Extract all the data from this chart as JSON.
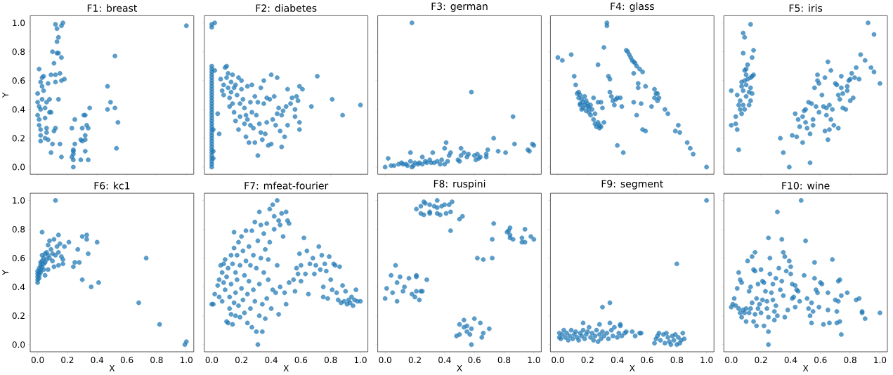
{
  "chart_data": [
    {
      "type": "scatter",
      "title": "F1: breast",
      "ylabel": "Y",
      "color": "#1f77b4",
      "tick_labels": "y",
      "xlim": [
        -0.05,
        1.05
      ],
      "ylim": [
        -0.05,
        1.05
      ],
      "xticks": [
        {
          "value": 0,
          "label": null
        },
        {
          "value": 0.2,
          "label": null
        },
        {
          "value": 0.4,
          "label": null
        },
        {
          "value": 0.6,
          "label": null
        },
        {
          "value": 0.8,
          "label": null
        },
        {
          "value": 1,
          "label": null
        }
      ],
      "yticks": [
        {
          "value": 0,
          "label": "0.0"
        },
        {
          "value": 0.2,
          "label": "0.2"
        },
        {
          "value": 0.4,
          "label": "0.4"
        },
        {
          "value": 0.6,
          "label": "0.6"
        },
        {
          "value": 0.8,
          "label": "0.8"
        },
        {
          "value": 1,
          "label": "1.0"
        }
      ],
      "x": [
        0.0,
        0.0,
        0.01,
        0.0,
        0.01,
        0.01,
        0.01,
        0.02,
        0.02,
        0.02,
        0.02,
        0.02,
        0.03,
        0.03,
        0.03,
        0.04,
        0.04,
        0.05,
        0.05,
        0.05,
        0.06,
        0.06,
        0.06,
        0.07,
        0.07,
        0.08,
        0.08,
        0.09,
        0.09,
        0.09,
        0.1,
        0.1,
        0.11,
        0.12,
        0.12,
        0.11,
        0.12,
        0.12,
        0.13,
        0.13,
        0.13,
        0.14,
        0.14,
        0.14,
        0.15,
        0.15,
        0.16,
        0.16,
        0.16,
        0.17,
        0.16,
        0.18,
        0.23,
        0.23,
        0.24,
        0.24,
        0.24,
        0.24,
        0.24,
        0.25,
        0.25,
        0.29,
        0.3,
        0.29,
        0.3,
        0.31,
        0.32,
        0.32,
        0.32,
        0.32,
        0.33,
        0.34,
        0.34,
        0.35,
        0.47,
        0.47,
        0.49,
        0.52,
        0.52,
        0.53,
        0.54,
        1.0
      ],
      "values": [
        0.36,
        0.51,
        0.68,
        0.45,
        0.42,
        0.33,
        0.29,
        0.22,
        0.18,
        0.26,
        0.4,
        0.59,
        0.62,
        0.56,
        0.47,
        0.63,
        0.53,
        0.41,
        0.34,
        0.2,
        0.27,
        0.24,
        0.45,
        0.58,
        0.19,
        0.38,
        0.47,
        0.64,
        0.1,
        0.38,
        0.16,
        0.8,
        0.72,
        0.59,
        0.64,
        0.25,
        0.27,
        0.99,
        0.96,
        0.87,
        0.79,
        0.9,
        0.47,
        0.79,
        0.16,
        0.65,
        0.98,
        0.76,
        0.6,
        1.0,
        0.07,
        0.61,
        0.27,
        0.07,
        0.12,
        0.09,
        0.05,
        0.0,
        0.11,
        0.33,
        0.16,
        0.19,
        0.18,
        0.05,
        0.27,
        0.36,
        0.36,
        0.11,
        0.22,
        0.19,
        0.29,
        0.27,
        0.05,
        0.41,
        0.4,
        0.56,
        0.45,
        0.77,
        0.41,
        0.13,
        0.31,
        0.98
      ]
    },
    {
      "type": "scatter",
      "title": "F2: diabetes",
      "color": "#1f77b4",
      "tick_labels": false,
      "xlim": [
        -0.05,
        1.05
      ],
      "ylim": [
        -0.05,
        1.05
      ],
      "xticks": [
        {
          "value": 0,
          "label": null
        },
        {
          "value": 0.2,
          "label": null
        },
        {
          "value": 0.4,
          "label": null
        },
        {
          "value": 0.6,
          "label": null
        },
        {
          "value": 0.8,
          "label": null
        },
        {
          "value": 1,
          "label": null
        }
      ],
      "yticks": [
        {
          "value": 0,
          "label": null
        },
        {
          "value": 0.2,
          "label": null
        },
        {
          "value": 0.4,
          "label": null
        },
        {
          "value": 0.6,
          "label": null
        },
        {
          "value": 0.8,
          "label": null
        },
        {
          "value": 1,
          "label": null
        }
      ],
      "x": [
        0,
        0,
        0,
        0,
        0,
        0,
        0,
        0,
        0,
        0,
        0,
        0,
        0,
        0,
        0,
        0,
        0,
        0,
        0,
        0,
        0,
        0,
        0,
        0,
        0,
        0,
        0,
        0,
        0,
        0,
        0,
        0,
        0,
        0,
        0,
        0,
        0,
        0,
        0.02,
        0.01,
        0.01,
        0.01,
        0.02,
        0.04,
        0.05,
        0.06,
        0.07,
        0.08,
        0.08,
        0.09,
        0.1,
        0.1,
        0.11,
        0.11,
        0.12,
        0.12,
        0.13,
        0.13,
        0.14,
        0.14,
        0.15,
        0.15,
        0.16,
        0.16,
        0.17,
        0.18,
        0.18,
        0.19,
        0.19,
        0.2,
        0.2,
        0.21,
        0.22,
        0.22,
        0.23,
        0.23,
        0.24,
        0.24,
        0.25,
        0.26,
        0.26,
        0.27,
        0.27,
        0.28,
        0.29,
        0.29,
        0.3,
        0.31,
        0.31,
        0.32,
        0.33,
        0.33,
        0.34,
        0.35,
        0.35,
        0.36,
        0.37,
        0.37,
        0.38,
        0.39,
        0.4,
        0.4,
        0.41,
        0.42,
        0.43,
        0.44,
        0.44,
        0.45,
        0.46,
        0.47,
        0.47,
        0.48,
        0.49,
        0.5,
        0.51,
        0.51,
        0.53,
        0.54,
        0.56,
        0.59,
        0.59,
        0.61,
        0.67,
        0.71,
        0.57,
        0.58,
        0.59,
        0.56,
        0.81,
        0.88,
        1.0
      ],
      "values": [
        0.0,
        0.02,
        0.04,
        0.06,
        0.08,
        0.1,
        0.12,
        0.14,
        0.16,
        0.18,
        0.2,
        0.22,
        0.24,
        0.26,
        0.28,
        0.3,
        0.32,
        0.34,
        0.36,
        0.38,
        0.4,
        0.42,
        0.44,
        0.46,
        0.48,
        0.5,
        0.52,
        0.54,
        0.56,
        0.58,
        0.6,
        0.62,
        0.64,
        0.66,
        0.68,
        0.7,
        0.97,
        0.99,
        1.0,
        0.11,
        0.06,
        0.26,
        0.67,
        0.37,
        0.23,
        0.61,
        0.53,
        0.57,
        0.5,
        0.69,
        0.7,
        0.62,
        0.65,
        0.55,
        0.48,
        0.42,
        0.59,
        0.52,
        0.64,
        0.44,
        0.55,
        0.38,
        0.57,
        0.32,
        0.5,
        0.62,
        0.26,
        0.44,
        0.35,
        0.54,
        0.6,
        0.47,
        0.3,
        0.41,
        0.21,
        0.36,
        0.56,
        0.33,
        0.17,
        0.45,
        0.29,
        0.57,
        0.38,
        0.27,
        0.49,
        0.17,
        0.36,
        0.08,
        0.45,
        0.3,
        0.55,
        0.24,
        0.19,
        0.6,
        0.44,
        0.23,
        0.48,
        0.31,
        0.15,
        0.47,
        0.64,
        0.16,
        0.33,
        0.49,
        0.29,
        0.62,
        0.37,
        0.41,
        0.25,
        0.14,
        0.36,
        0.39,
        0.21,
        0.42,
        0.54,
        0.29,
        0.44,
        0.48,
        0.4,
        0.26,
        0.56,
        0.54,
        0.42,
        0.63,
        0.49,
        0.46,
        0.31,
        0.35,
        0.47,
        0.36,
        0.43
      ]
    },
    {
      "type": "scatter",
      "title": "F3: german",
      "color": "#1f77b4",
      "tick_labels": false,
      "xlim": [
        -0.05,
        1.05
      ],
      "ylim": [
        -0.05,
        1.05
      ],
      "xticks": [
        {
          "value": 0,
          "label": null
        },
        {
          "value": 0.2,
          "label": null
        },
        {
          "value": 0.4,
          "label": null
        },
        {
          "value": 0.6,
          "label": null
        },
        {
          "value": 0.8,
          "label": null
        },
        {
          "value": 1,
          "label": null
        }
      ],
      "yticks": [
        {
          "value": 0,
          "label": null
        },
        {
          "value": 0.2,
          "label": null
        },
        {
          "value": 0.4,
          "label": null
        },
        {
          "value": 0.6,
          "label": null
        },
        {
          "value": 0.8,
          "label": null
        },
        {
          "value": 1,
          "label": null
        }
      ],
      "x": [
        0.0,
        0.02,
        0.04,
        0.06,
        0.09,
        0.11,
        0.12,
        0.14,
        0.15,
        0.17,
        0.17,
        0.18,
        0.18,
        0.19,
        0.2,
        0.22,
        0.23,
        0.25,
        0.25,
        0.27,
        0.28,
        0.3,
        0.31,
        0.32,
        0.33,
        0.35,
        0.37,
        0.38,
        0.4,
        0.4,
        0.41,
        0.42,
        0.43,
        0.44,
        0.49,
        0.5,
        0.51,
        0.51,
        0.53,
        0.55,
        0.56,
        0.58,
        0.6,
        0.61,
        0.62,
        0.63,
        0.64,
        0.68,
        0.68,
        0.69,
        0.73,
        0.76,
        0.81,
        0.86,
        0.87,
        0.96,
        0.97,
        0.99,
        1.0
      ],
      "values": [
        0.0,
        0.06,
        0.01,
        0.01,
        0.02,
        0.03,
        0.02,
        0.02,
        0.01,
        0.1,
        0.04,
        1.0,
        0.0,
        0.01,
        0.03,
        0.02,
        0.03,
        0.07,
        0.02,
        0.04,
        0.03,
        0.05,
        0.03,
        0.1,
        0.03,
        0.04,
        0.02,
        0.05,
        0.13,
        0.02,
        0.17,
        0.04,
        0.08,
        0.1,
        0.05,
        0.04,
        0.08,
        0.13,
        0.1,
        0.07,
        0.09,
        0.52,
        0.08,
        0.05,
        0.09,
        0.06,
        0.07,
        0.07,
        0.09,
        0.12,
        0.2,
        0.11,
        0.1,
        0.35,
        0.16,
        0.12,
        0.11,
        0.16,
        0.15
      ]
    },
    {
      "type": "scatter",
      "title": "F4: glass",
      "color": "#1f77b4",
      "tick_labels": false,
      "xlim": [
        -0.05,
        1.05
      ],
      "ylim": [
        -0.05,
        1.05
      ],
      "xticks": [
        {
          "value": 0,
          "label": null
        },
        {
          "value": 0.2,
          "label": null
        },
        {
          "value": 0.4,
          "label": null
        },
        {
          "value": 0.6,
          "label": null
        },
        {
          "value": 0.8,
          "label": null
        },
        {
          "value": 1,
          "label": null
        }
      ],
      "yticks": [
        {
          "value": 0,
          "label": null
        },
        {
          "value": 0.2,
          "label": null
        },
        {
          "value": 0.4,
          "label": null
        },
        {
          "value": 0.6,
          "label": null
        },
        {
          "value": 0.8,
          "label": null
        },
        {
          "value": 1,
          "label": null
        }
      ],
      "x": [
        0.0,
        0.03,
        0.09,
        0.11,
        0.12,
        0.13,
        0.14,
        0.14,
        0.15,
        0.15,
        0.15,
        0.16,
        0.16,
        0.17,
        0.17,
        0.18,
        0.18,
        0.19,
        0.19,
        0.2,
        0.2,
        0.21,
        0.21,
        0.22,
        0.22,
        0.23,
        0.24,
        0.25,
        0.25,
        0.26,
        0.27,
        0.28,
        0.28,
        0.24,
        0.27,
        0.29,
        0.3,
        0.29,
        0.31,
        0.27,
        0.31,
        0.33,
        0.33,
        0.34,
        0.35,
        0.35,
        0.36,
        0.37,
        0.38,
        0.39,
        0.4,
        0.4,
        0.42,
        0.43,
        0.44,
        0.46,
        0.47,
        0.48,
        0.49,
        0.5,
        0.51,
        0.51,
        0.52,
        0.53,
        0.53,
        0.51,
        0.54,
        0.54,
        0.55,
        0.56,
        0.57,
        0.59,
        0.57,
        0.59,
        0.63,
        0.65,
        0.65,
        0.66,
        0.67,
        0.68,
        0.67,
        0.72,
        0.74,
        0.79,
        0.81,
        0.82,
        0.87,
        0.89,
        0.91,
        1.0
      ],
      "values": [
        0.76,
        0.74,
        0.78,
        0.63,
        0.57,
        0.51,
        0.52,
        0.48,
        0.5,
        0.44,
        0.43,
        0.47,
        0.4,
        0.45,
        0.41,
        0.49,
        0.43,
        0.46,
        0.39,
        0.42,
        0.44,
        0.38,
        0.41,
        0.43,
        0.36,
        0.4,
        0.33,
        0.3,
        0.37,
        0.28,
        0.31,
        0.29,
        0.27,
        0.48,
        0.45,
        0.45,
        0.41,
        0.28,
        0.31,
        0.71,
        0.83,
        1.0,
        0.98,
        0.63,
        0.61,
        0.52,
        0.49,
        0.46,
        0.43,
        0.47,
        0.48,
        0.15,
        0.48,
        0.42,
        0.1,
        0.81,
        0.8,
        0.78,
        0.76,
        0.74,
        0.73,
        0.65,
        0.72,
        0.7,
        0.36,
        0.45,
        0.58,
        0.55,
        0.68,
        0.44,
        0.66,
        0.56,
        0.26,
        0.25,
        0.42,
        0.48,
        0.54,
        0.51,
        0.51,
        0.48,
        0.46,
        0.4,
        0.37,
        0.25,
        0.29,
        0.24,
        0.17,
        0.13,
        0.09,
        0.0
      ]
    },
    {
      "type": "scatter",
      "title": "F5: iris",
      "color": "#1f77b4",
      "tick_labels": false,
      "xlim": [
        -0.05,
        1.05
      ],
      "ylim": [
        -0.05,
        1.05
      ],
      "xticks": [
        {
          "value": 0,
          "label": null
        },
        {
          "value": 0.2,
          "label": null
        },
        {
          "value": 0.4,
          "label": null
        },
        {
          "value": 0.6,
          "label": null
        },
        {
          "value": 0.8,
          "label": null
        },
        {
          "value": 1,
          "label": null
        }
      ],
      "yticks": [
        {
          "value": 0,
          "label": null
        },
        {
          "value": 0.2,
          "label": null
        },
        {
          "value": 0.4,
          "label": null
        },
        {
          "value": 0.6,
          "label": null
        },
        {
          "value": 0.8,
          "label": null
        },
        {
          "value": 1,
          "label": null
        }
      ],
      "x": [
        0.0,
        0.0,
        0.03,
        0.03,
        0.04,
        0.04,
        0.05,
        0.05,
        0.06,
        0.06,
        0.07,
        0.07,
        0.07,
        0.08,
        0.08,
        0.09,
        0.09,
        0.08,
        0.08,
        0.09,
        0.09,
        0.1,
        0.1,
        0.1,
        0.1,
        0.11,
        0.11,
        0.12,
        0.12,
        0.13,
        0.13,
        0.13,
        0.13,
        0.14,
        0.14,
        0.14,
        0.15,
        0.15,
        0.33,
        0.35,
        0.39,
        0.41,
        0.43,
        0.44,
        0.45,
        0.46,
        0.48,
        0.48,
        0.49,
        0.5,
        0.5,
        0.51,
        0.52,
        0.53,
        0.53,
        0.54,
        0.55,
        0.55,
        0.56,
        0.57,
        0.58,
        0.58,
        0.59,
        0.59,
        0.61,
        0.62,
        0.63,
        0.63,
        0.64,
        0.64,
        0.65,
        0.65,
        0.66,
        0.66,
        0.67,
        0.67,
        0.68,
        0.69,
        0.7,
        0.71,
        0.72,
        0.72,
        0.73,
        0.74,
        0.74,
        0.75,
        0.75,
        0.77,
        0.78,
        0.78,
        0.79,
        0.8,
        0.8,
        0.81,
        0.82,
        0.83,
        0.84,
        0.86,
        0.87,
        0.9,
        0.92,
        0.94,
        0.96,
        0.96,
        1.0
      ],
      "values": [
        0.53,
        0.29,
        0.35,
        0.3,
        0.26,
        0.5,
        0.12,
        0.43,
        0.4,
        0.46,
        0.37,
        0.56,
        0.59,
        0.43,
        0.53,
        0.6,
        0.4,
        0.79,
        0.93,
        0.9,
        0.67,
        0.68,
        0.64,
        0.57,
        0.49,
        0.71,
        0.61,
        0.43,
        0.52,
        0.62,
        0.55,
        0.99,
        0.46,
        0.51,
        0.76,
        0.63,
        0.81,
        0.64,
        0.2,
        0.1,
        0.0,
        0.22,
        0.37,
        0.21,
        0.33,
        0.28,
        0.35,
        0.17,
        0.39,
        0.31,
        0.4,
        0.27,
        0.45,
        0.23,
        0.03,
        0.44,
        0.33,
        0.29,
        0.55,
        0.42,
        0.64,
        0.6,
        0.38,
        0.58,
        0.5,
        0.42,
        0.62,
        0.25,
        0.41,
        0.36,
        0.73,
        0.19,
        0.43,
        0.26,
        0.33,
        0.67,
        0.4,
        0.29,
        0.58,
        0.57,
        0.27,
        0.5,
        0.47,
        0.55,
        0.63,
        0.51,
        0.41,
        0.4,
        0.53,
        0.56,
        0.6,
        0.61,
        0.46,
        0.65,
        0.48,
        0.62,
        0.69,
        0.61,
        0.78,
        0.74,
        1.0,
        0.69,
        0.92,
        0.66,
        0.58
      ]
    },
    {
      "type": "scatter",
      "title": "F6: kc1",
      "xlabel": "X",
      "ylabel": "Y",
      "color": "#1f77b4",
      "xlim": [
        -0.05,
        1.05
      ],
      "ylim": [
        -0.05,
        1.05
      ],
      "xticks": [
        {
          "value": 0,
          "label": "0.0"
        },
        {
          "value": 0.2,
          "label": "0.2"
        },
        {
          "value": 0.4,
          "label": "0.4"
        },
        {
          "value": 0.6,
          "label": "0.6"
        },
        {
          "value": 0.8,
          "label": "0.8"
        },
        {
          "value": 1,
          "label": "1.0"
        }
      ],
      "yticks": [
        {
          "value": 0,
          "label": "0.0"
        },
        {
          "value": 0.2,
          "label": "0.2"
        },
        {
          "value": 0.4,
          "label": "0.4"
        },
        {
          "value": 0.6,
          "label": "0.6"
        },
        {
          "value": 0.8,
          "label": "0.8"
        },
        {
          "value": 1,
          "label": "1.0"
        }
      ],
      "x": [
        0.0,
        0.0,
        0.0,
        0.0,
        0.0,
        0.01,
        0.01,
        0.01,
        0.01,
        0.02,
        0.02,
        0.02,
        0.02,
        0.03,
        0.03,
        0.03,
        0.04,
        0.04,
        0.04,
        0.05,
        0.05,
        0.05,
        0.06,
        0.06,
        0.07,
        0.07,
        0.07,
        0.08,
        0.08,
        0.09,
        0.1,
        0.1,
        0.11,
        0.11,
        0.12,
        0.12,
        0.13,
        0.14,
        0.14,
        0.14,
        0.15,
        0.16,
        0.17,
        0.17,
        0.18,
        0.03,
        0.21,
        0.24,
        0.25,
        0.27,
        0.28,
        0.3,
        0.3,
        0.33,
        0.33,
        0.34,
        0.36,
        0.4,
        0.41,
        0.68,
        0.73,
        0.82,
        0.99,
        1.0
      ],
      "values": [
        0.43,
        0.45,
        0.47,
        0.49,
        0.51,
        0.46,
        0.5,
        0.53,
        0.48,
        0.52,
        0.55,
        0.5,
        0.57,
        0.54,
        0.58,
        0.62,
        0.56,
        0.6,
        0.52,
        0.57,
        0.63,
        0.48,
        0.59,
        0.64,
        0.62,
        0.69,
        0.52,
        0.72,
        0.6,
        0.66,
        0.58,
        0.63,
        0.54,
        0.73,
        1.0,
        0.62,
        0.68,
        0.76,
        0.55,
        0.64,
        0.7,
        0.61,
        0.59,
        0.56,
        0.68,
        0.78,
        0.71,
        0.54,
        0.57,
        0.66,
        0.57,
        0.75,
        0.45,
        0.76,
        0.73,
        0.63,
        0.4,
        0.71,
        0.43,
        0.29,
        0.6,
        0.14,
        0.0,
        0.02
      ]
    },
    {
      "type": "scatter",
      "title": "F7: mfeat-fourier",
      "xlabel": "X",
      "color": "#1f77b4",
      "tick_labels": "x",
      "xlim": [
        -0.05,
        1.05
      ],
      "ylim": [
        -0.05,
        1.05
      ],
      "xticks": [
        {
          "value": 0,
          "label": "0.0"
        },
        {
          "value": 0.2,
          "label": "0.2"
        },
        {
          "value": 0.4,
          "label": "0.4"
        },
        {
          "value": 0.6,
          "label": "0.6"
        },
        {
          "value": 0.8,
          "label": "0.8"
        },
        {
          "value": 1,
          "label": "1.0"
        }
      ],
      "yticks": [
        {
          "value": 0,
          "label": null
        },
        {
          "value": 0.2,
          "label": null
        },
        {
          "value": 0.4,
          "label": null
        },
        {
          "value": 0.6,
          "label": null
        },
        {
          "value": 0.8,
          "label": null
        },
        {
          "value": 1,
          "label": null
        }
      ],
      "x": [
        0.0,
        0.01,
        0.02,
        0.04,
        0.05,
        0.05,
        0.06,
        0.07,
        0.07,
        0.08,
        0.08,
        0.09,
        0.09,
        0.1,
        0.1,
        0.11,
        0.11,
        0.12,
        0.12,
        0.13,
        0.13,
        0.13,
        0.14,
        0.14,
        0.15,
        0.15,
        0.15,
        0.16,
        0.16,
        0.16,
        0.17,
        0.17,
        0.18,
        0.18,
        0.19,
        0.19,
        0.2,
        0.2,
        0.21,
        0.21,
        0.22,
        0.22,
        0.23,
        0.23,
        0.24,
        0.24,
        0.25,
        0.25,
        0.26,
        0.26,
        0.27,
        0.27,
        0.28,
        0.28,
        0.29,
        0.29,
        0.3,
        0.3,
        0.31,
        0.31,
        0.32,
        0.32,
        0.32,
        0.33,
        0.33,
        0.34,
        0.34,
        0.35,
        0.35,
        0.36,
        0.36,
        0.37,
        0.37,
        0.38,
        0.38,
        0.39,
        0.39,
        0.4,
        0.41,
        0.41,
        0.42,
        0.42,
        0.43,
        0.44,
        0.44,
        0.45,
        0.45,
        0.46,
        0.46,
        0.47,
        0.48,
        0.49,
        0.5,
        0.5,
        0.51,
        0.52,
        0.52,
        0.55,
        0.56,
        0.57,
        0.58,
        0.59,
        0.6,
        0.6,
        0.62,
        0.63,
        0.64,
        0.65,
        0.66,
        0.68,
        0.69,
        0.7,
        0.72,
        0.73,
        0.74,
        0.75,
        0.75,
        0.76,
        0.77,
        0.78,
        0.79,
        0.8,
        0.81,
        0.82,
        0.83,
        0.84,
        0.85,
        0.86,
        0.87,
        0.88,
        0.89,
        0.9,
        0.91,
        0.92,
        0.93,
        0.94,
        0.95,
        0.96,
        0.97,
        0.98,
        1.0
      ],
      "values": [
        0.28,
        0.28,
        0.35,
        0.41,
        0.45,
        0.33,
        0.55,
        0.3,
        0.5,
        0.56,
        0.43,
        0.59,
        0.38,
        0.47,
        0.16,
        0.15,
        0.53,
        0.33,
        0.25,
        0.42,
        0.21,
        0.62,
        0.14,
        0.56,
        0.78,
        0.67,
        0.29,
        0.5,
        0.36,
        0.2,
        0.62,
        0.45,
        0.71,
        0.27,
        0.55,
        0.19,
        0.75,
        0.39,
        0.65,
        0.31,
        0.48,
        0.22,
        0.79,
        0.58,
        0.35,
        0.15,
        0.68,
        0.44,
        0.25,
        0.55,
        0.79,
        0.12,
        0.62,
        0.38,
        0.85,
        0.3,
        0.09,
        0.53,
        0.72,
        0.0,
        0.92,
        0.42,
        0.2,
        0.83,
        0.6,
        0.09,
        0.28,
        0.77,
        0.5,
        0.66,
        0.18,
        0.84,
        0.32,
        0.59,
        0.45,
        0.94,
        0.71,
        0.25,
        0.97,
        0.38,
        0.89,
        0.8,
        0.36,
        1.0,
        0.55,
        0.86,
        0.21,
        0.83,
        0.4,
        0.91,
        0.75,
        0.36,
        0.92,
        0.28,
        0.86,
        0.84,
        0.43,
        0.45,
        0.37,
        0.53,
        0.49,
        0.63,
        0.44,
        0.55,
        0.74,
        0.49,
        0.65,
        0.35,
        0.56,
        0.6,
        0.49,
        0.55,
        0.68,
        0.52,
        0.62,
        0.4,
        0.33,
        0.56,
        0.51,
        0.32,
        0.61,
        0.45,
        0.38,
        0.56,
        0.55,
        0.36,
        0.31,
        0.54,
        0.29,
        0.41,
        0.3,
        0.37,
        0.28,
        0.31,
        0.29,
        0.33,
        0.27,
        0.31,
        0.38,
        0.3,
        0.3
      ]
    },
    {
      "type": "scatter",
      "title": "F8: ruspini",
      "xlabel": "X",
      "color": "#1f77b4",
      "tick_labels": "x",
      "xlim": [
        -0.05,
        1.05
      ],
      "ylim": [
        -0.05,
        1.05
      ],
      "xticks": [
        {
          "value": 0,
          "label": "0.0"
        },
        {
          "value": 0.2,
          "label": "0.2"
        },
        {
          "value": 0.4,
          "label": "0.4"
        },
        {
          "value": 0.6,
          "label": "0.6"
        },
        {
          "value": 0.8,
          "label": "0.8"
        },
        {
          "value": 1,
          "label": "1.0"
        }
      ],
      "yticks": [
        {
          "value": 0,
          "label": null
        },
        {
          "value": 0.2,
          "label": null
        },
        {
          "value": 0.4,
          "label": null
        },
        {
          "value": 0.6,
          "label": null
        },
        {
          "value": 0.8,
          "label": null
        },
        {
          "value": 1,
          "label": null
        }
      ],
      "x": [
        0.0,
        0.01,
        0.04,
        0.05,
        0.07,
        0.08,
        0.08,
        0.1,
        0.12,
        0.13,
        0.16,
        0.18,
        0.2,
        0.21,
        0.21,
        0.21,
        0.23,
        0.24,
        0.25,
        0.28,
        0.21,
        0.24,
        0.24,
        0.26,
        0.26,
        0.27,
        0.3,
        0.3,
        0.3,
        0.33,
        0.35,
        0.35,
        0.35,
        0.37,
        0.38,
        0.4,
        0.41,
        0.43,
        0.44,
        0.45,
        0.44,
        0.5,
        0.52,
        0.62,
        0.66,
        0.72,
        0.72,
        0.73,
        0.82,
        0.83,
        0.84,
        0.84,
        0.84,
        0.86,
        0.92,
        0.92,
        0.94,
        0.94,
        0.98,
        1.0,
        0.48,
        0.5,
        0.5,
        0.53,
        0.53,
        0.55,
        0.55,
        0.57,
        0.58,
        0.58,
        0.6,
        0.64,
        0.65,
        0.66,
        0.7
      ],
      "values": [
        0.32,
        0.39,
        0.48,
        0.36,
        0.55,
        0.43,
        0.3,
        0.47,
        0.37,
        0.4,
        0.46,
        0.35,
        0.33,
        0.47,
        0.48,
        0.37,
        0.31,
        0.37,
        0.37,
        0.45,
        0.94,
        0.96,
        0.91,
        0.99,
        0.9,
        0.98,
        0.97,
        0.92,
        0.91,
        0.96,
        1.0,
        0.95,
        0.91,
        0.9,
        0.96,
        0.97,
        0.91,
        0.97,
        0.92,
        0.99,
        0.79,
        0.87,
        0.89,
        0.6,
        0.59,
        0.6,
        0.73,
        0.84,
        0.78,
        0.79,
        0.81,
        0.76,
        0.74,
        0.73,
        0.74,
        0.71,
        0.71,
        0.8,
        0.75,
        0.73,
        0.06,
        0.14,
        0.07,
        0.12,
        0.17,
        0.13,
        0.09,
        0.07,
        0.11,
        0.0,
        0.18,
        0.15,
        0.05,
        0.08,
        0.11
      ]
    },
    {
      "type": "scatter",
      "title": "F9: segment",
      "xlabel": "X",
      "color": "#1f77b4",
      "tick_labels": "x",
      "xlim": [
        -0.05,
        1.05
      ],
      "ylim": [
        -0.05,
        1.05
      ],
      "xticks": [
        {
          "value": 0,
          "label": "0.0"
        },
        {
          "value": 0.2,
          "label": "0.2"
        },
        {
          "value": 0.4,
          "label": "0.4"
        },
        {
          "value": 0.6,
          "label": "0.6"
        },
        {
          "value": 0.8,
          "label": "0.8"
        },
        {
          "value": 1,
          "label": "1.0"
        }
      ],
      "yticks": [
        {
          "value": 0,
          "label": null
        },
        {
          "value": 0.2,
          "label": null
        },
        {
          "value": 0.4,
          "label": null
        },
        {
          "value": 0.6,
          "label": null
        },
        {
          "value": 0.8,
          "label": null
        },
        {
          "value": 1,
          "label": null
        }
      ],
      "x": [
        0.01,
        0.01,
        0.02,
        0.03,
        0.04,
        0.05,
        0.06,
        0.07,
        0.08,
        0.09,
        0.1,
        0.11,
        0.12,
        0.13,
        0.14,
        0.15,
        0.16,
        0.17,
        0.17,
        0.18,
        0.19,
        0.2,
        0.21,
        0.22,
        0.23,
        0.24,
        0.25,
        0.26,
        0.27,
        0.28,
        0.28,
        0.29,
        0.3,
        0.3,
        0.31,
        0.33,
        0.34,
        0.35,
        0.35,
        0.36,
        0.37,
        0.38,
        0.4,
        0.41,
        0.42,
        0.42,
        0.43,
        0.45,
        0.46,
        0.5,
        0.52,
        0.55,
        0.56,
        0.65,
        0.66,
        0.67,
        0.68,
        0.69,
        0.71,
        0.72,
        0.73,
        0.74,
        0.75,
        0.76,
        0.77,
        0.78,
        0.79,
        0.8,
        0.8,
        0.81,
        0.82,
        0.83,
        0.84,
        0.85,
        1.0
      ],
      "values": [
        0.05,
        0.08,
        0.04,
        0.07,
        0.1,
        0.05,
        0.08,
        0.03,
        0.06,
        0.1,
        0.04,
        0.07,
        0.09,
        0.05,
        0.03,
        0.08,
        0.06,
        0.15,
        0.1,
        0.04,
        0.07,
        0.09,
        0.12,
        0.05,
        0.08,
        0.03,
        0.06,
        0.1,
        0.02,
        0.14,
        0.07,
        0.04,
        0.26,
        0.09,
        0.06,
        0.08,
        0.04,
        0.15,
        0.29,
        0.1,
        0.06,
        0.12,
        0.05,
        0.08,
        0.14,
        0.13,
        0.06,
        0.08,
        0.09,
        0.09,
        0.06,
        0.08,
        0.08,
        0.01,
        0.04,
        0.06,
        0.08,
        0.03,
        0.07,
        0.01,
        0.08,
        0.05,
        0.02,
        0.0,
        0.06,
        0.03,
        0.07,
        0.0,
        0.56,
        0.05,
        0.01,
        0.03,
        0.08,
        0.04,
        1.0
      ]
    },
    {
      "type": "scatter",
      "title": "F10: wine",
      "xlabel": "X",
      "color": "#1f77b4",
      "tick_labels": "x",
      "xlim": [
        -0.05,
        1.05
      ],
      "ylim": [
        -0.05,
        1.05
      ],
      "xticks": [
        {
          "value": 0,
          "label": "0.0"
        },
        {
          "value": 0.2,
          "label": "0.2"
        },
        {
          "value": 0.4,
          "label": "0.4"
        },
        {
          "value": 0.6,
          "label": "0.6"
        },
        {
          "value": 0.8,
          "label": "0.8"
        },
        {
          "value": 1,
          "label": "1.0"
        }
      ],
      "yticks": [
        {
          "value": 0,
          "label": null
        },
        {
          "value": 0.2,
          "label": null
        },
        {
          "value": 0.4,
          "label": null
        },
        {
          "value": 0.6,
          "label": null
        },
        {
          "value": 0.8,
          "label": null
        },
        {
          "value": 1,
          "label": null
        }
      ],
      "x": [
        0.0,
        0.01,
        0.02,
        0.03,
        0.04,
        0.05,
        0.05,
        0.06,
        0.06,
        0.07,
        0.07,
        0.08,
        0.09,
        0.1,
        0.1,
        0.11,
        0.12,
        0.12,
        0.13,
        0.13,
        0.14,
        0.14,
        0.15,
        0.15,
        0.16,
        0.16,
        0.16,
        0.17,
        0.17,
        0.18,
        0.18,
        0.19,
        0.2,
        0.2,
        0.21,
        0.21,
        0.22,
        0.22,
        0.23,
        0.24,
        0.24,
        0.25,
        0.25,
        0.25,
        0.25,
        0.26,
        0.26,
        0.27,
        0.28,
        0.28,
        0.29,
        0.29,
        0.3,
        0.3,
        0.31,
        0.31,
        0.32,
        0.33,
        0.34,
        0.34,
        0.35,
        0.35,
        0.36,
        0.36,
        0.37,
        0.38,
        0.39,
        0.4,
        0.4,
        0.41,
        0.41,
        0.42,
        0.43,
        0.43,
        0.44,
        0.45,
        0.46,
        0.47,
        0.49,
        0.5,
        0.51,
        0.52,
        0.53,
        0.54,
        0.54,
        0.55,
        0.56,
        0.56,
        0.57,
        0.58,
        0.59,
        0.6,
        0.61,
        0.62,
        0.65,
        0.65,
        0.66,
        0.68,
        0.7,
        0.71,
        0.71,
        0.72,
        0.72,
        0.73,
        0.73,
        0.74,
        0.74,
        0.78,
        0.84,
        0.86,
        0.88,
        0.88,
        0.9,
        1.0
      ],
      "values": [
        0.26,
        0.28,
        0.32,
        0.27,
        0.39,
        0.5,
        0.25,
        0.45,
        0.22,
        0.43,
        0.19,
        0.24,
        0.22,
        0.16,
        0.25,
        0.58,
        0.37,
        0.22,
        0.4,
        0.25,
        0.29,
        0.61,
        0.52,
        0.16,
        0.51,
        0.64,
        0.21,
        0.13,
        0.32,
        0.25,
        0.42,
        0.28,
        0.52,
        0.22,
        0.44,
        0.31,
        0.13,
        0.43,
        0.37,
        0.25,
        0.3,
        0.74,
        0.19,
        0.09,
        0.0,
        0.6,
        0.49,
        0.36,
        0.31,
        0.42,
        0.17,
        0.23,
        0.46,
        0.27,
        0.92,
        0.2,
        0.53,
        0.38,
        0.73,
        0.44,
        0.64,
        0.34,
        0.61,
        0.19,
        0.51,
        0.24,
        0.58,
        0.54,
        0.49,
        0.32,
        0.42,
        0.33,
        0.26,
        0.41,
        0.38,
        0.37,
        0.3,
        1.0,
        0.48,
        0.72,
        0.32,
        0.25,
        0.2,
        0.29,
        0.15,
        0.23,
        0.46,
        0.57,
        0.38,
        0.36,
        0.26,
        0.43,
        0.42,
        0.14,
        0.36,
        0.24,
        0.15,
        0.59,
        0.31,
        0.23,
        0.15,
        0.44,
        0.3,
        0.45,
        0.16,
        0.34,
        0.07,
        0.36,
        0.31,
        0.32,
        0.22,
        0.23,
        0.18,
        0.22
      ]
    }
  ]
}
